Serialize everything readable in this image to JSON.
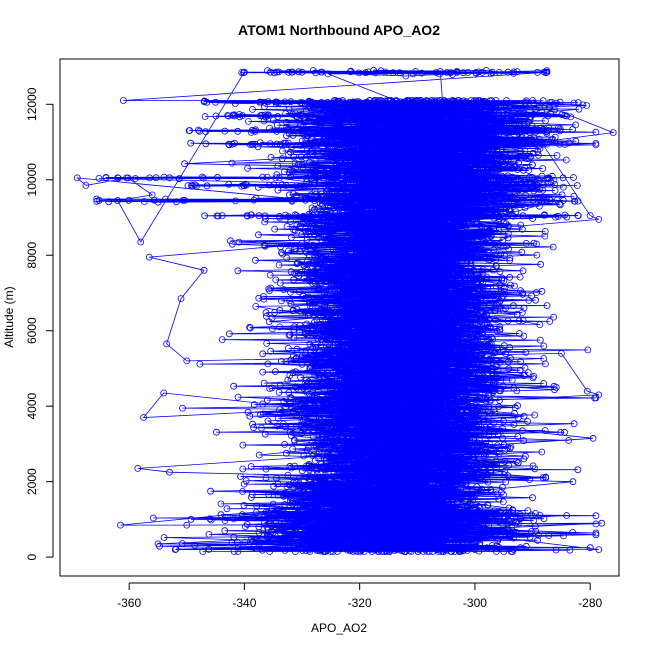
{
  "chart_data": {
    "type": "scatter",
    "title": "ATOM1 Northbound APO_AO2",
    "xlabel": "APO_AO2",
    "ylabel": "Altitude (m)",
    "xlim": [
      -372,
      -275
    ],
    "ylim": [
      -500,
      13200
    ],
    "x_ticks": [
      -360,
      -340,
      -320,
      -300,
      -280
    ],
    "y_ticks": [
      0,
      2000,
      4000,
      6000,
      8000,
      10000,
      12000
    ],
    "x_tick_labels": [
      "-360",
      "-340",
      "-320",
      "-300",
      "-280"
    ],
    "y_tick_labels": [
      "0",
      "2000",
      "4000",
      "6000",
      "8000",
      "10000",
      "12000"
    ],
    "grid": false,
    "legend": "none",
    "marker": "open-circle",
    "connected_lines": true,
    "point_count_estimate": 9000,
    "color": "#0000ff",
    "series": [
      {
        "sample_points": [
          [
            -369.0,
            10050
          ],
          [
            -367.5,
            9850
          ],
          [
            -360.2,
            10050
          ],
          [
            -356.0,
            9600
          ],
          [
            -362.0,
            9450
          ],
          [
            -358.0,
            8350
          ],
          [
            -340.0,
            12850
          ],
          [
            -330.0,
            12850
          ],
          [
            -312.0,
            12750
          ],
          [
            -297.0,
            12850
          ],
          [
            -287.5,
            12850
          ],
          [
            -361.0,
            12100
          ],
          [
            -290.0,
            12100
          ],
          [
            -276.0,
            11250
          ],
          [
            -288.5,
            11000
          ],
          [
            -280.0,
            9050
          ],
          [
            -278.5,
            8950
          ],
          [
            -356.5,
            7950
          ],
          [
            -347.0,
            7600
          ],
          [
            -351.0,
            6850
          ],
          [
            -353.5,
            5650
          ],
          [
            -350.0,
            5200
          ],
          [
            -285.0,
            5400
          ],
          [
            -280.5,
            4400
          ],
          [
            -278.5,
            4300
          ],
          [
            -357.5,
            3700
          ],
          [
            -354.0,
            4350
          ],
          [
            -279.5,
            3150
          ],
          [
            -358.5,
            2350
          ],
          [
            -353.0,
            2250
          ],
          [
            -283.0,
            2000
          ],
          [
            -361.5,
            850
          ],
          [
            -350.0,
            850
          ],
          [
            -278.0,
            900
          ],
          [
            -355.0,
            350
          ],
          [
            -280.0,
            250
          ],
          [
            -352.0,
            200
          ],
          [
            -300.0,
            200
          ],
          [
            -278.5,
            200
          ],
          [
            -322.0,
            1000
          ],
          [
            -310.0,
            3000
          ],
          [
            -315.0,
            5000
          ],
          [
            -312.0,
            7000
          ],
          [
            -318.0,
            9000
          ],
          [
            -305.0,
            11000
          ],
          [
            -300.0,
            12000
          ]
        ]
      }
    ]
  }
}
